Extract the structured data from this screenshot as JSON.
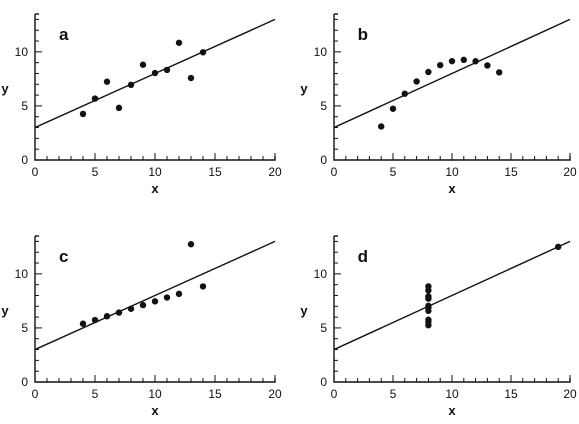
{
  "chart_data": [
    {
      "type": "scatter",
      "panel_label": "a",
      "xlabel": "x",
      "ylabel": "y",
      "xlim": [
        0,
        20
      ],
      "ylim": [
        0,
        13.5
      ],
      "x_ticks": [
        0,
        5,
        10,
        15,
        20
      ],
      "y_ticks": [
        0,
        5,
        10
      ],
      "x": [
        10,
        8,
        13,
        9,
        11,
        14,
        6,
        4,
        12,
        7,
        5
      ],
      "y": [
        8.04,
        6.95,
        7.58,
        8.81,
        8.33,
        9.96,
        7.24,
        4.26,
        10.84,
        4.82,
        5.68
      ],
      "fit_line": {
        "intercept": 3.0,
        "slope": 0.5
      },
      "grid": false
    },
    {
      "type": "scatter",
      "panel_label": "b",
      "xlabel": "x",
      "ylabel": "y",
      "xlim": [
        0,
        20
      ],
      "ylim": [
        0,
        13.5
      ],
      "x_ticks": [
        0,
        5,
        10,
        15,
        20
      ],
      "y_ticks": [
        0,
        5,
        10
      ],
      "x": [
        10,
        8,
        13,
        9,
        11,
        14,
        6,
        4,
        12,
        7,
        5
      ],
      "y": [
        9.14,
        8.14,
        8.74,
        8.77,
        9.26,
        8.1,
        6.13,
        3.1,
        9.13,
        7.26,
        4.74
      ],
      "fit_line": {
        "intercept": 3.0,
        "slope": 0.5
      },
      "grid": false
    },
    {
      "type": "scatter",
      "panel_label": "c",
      "xlabel": "x",
      "ylabel": "y",
      "xlim": [
        0,
        20
      ],
      "ylim": [
        0,
        13.5
      ],
      "x_ticks": [
        0,
        5,
        10,
        15,
        20
      ],
      "y_ticks": [
        0,
        5,
        10
      ],
      "x": [
        10,
        8,
        13,
        9,
        11,
        14,
        6,
        4,
        12,
        7,
        5
      ],
      "y": [
        7.46,
        6.77,
        12.74,
        7.11,
        7.81,
        8.84,
        6.08,
        5.39,
        8.15,
        6.42,
        5.73
      ],
      "fit_line": {
        "intercept": 3.0,
        "slope": 0.5
      },
      "grid": false
    },
    {
      "type": "scatter",
      "panel_label": "d",
      "xlabel": "x",
      "ylabel": "y",
      "xlim": [
        0,
        20
      ],
      "ylim": [
        0,
        13.5
      ],
      "x_ticks": [
        0,
        5,
        10,
        15,
        20
      ],
      "y_ticks": [
        0,
        5,
        10
      ],
      "x": [
        8,
        8,
        8,
        8,
        8,
        8,
        8,
        19,
        8,
        8,
        8
      ],
      "y": [
        6.58,
        5.76,
        7.71,
        8.84,
        8.47,
        7.04,
        5.25,
        12.5,
        5.56,
        7.91,
        6.89
      ],
      "fit_line": {
        "intercept": 3.0,
        "slope": 0.5
      },
      "grid": false
    }
  ]
}
